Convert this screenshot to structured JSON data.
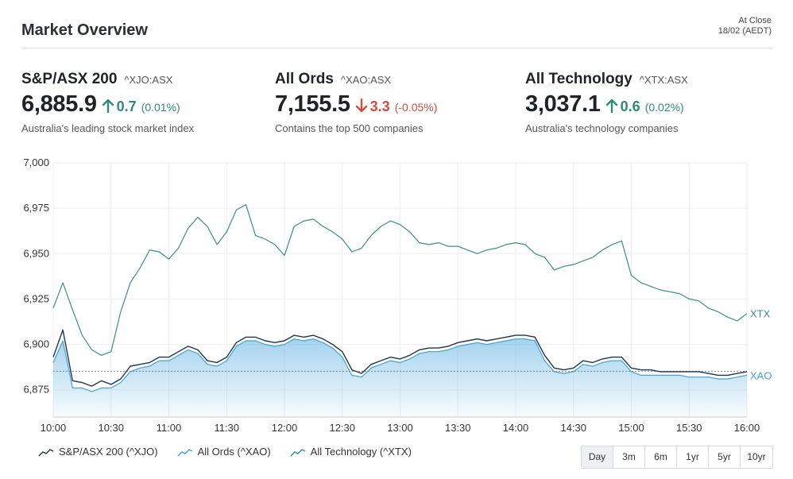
{
  "header": {
    "title": "Market Overview",
    "status": "At Close",
    "date": "18/02 (AEDT)"
  },
  "indices": [
    {
      "name": "S&P/ASX 200",
      "code": "^XJO:ASX",
      "value": "6,885.9",
      "direction": "up",
      "change": "0.7",
      "percent": "(0.01%)",
      "description": "Australia's leading stock market index"
    },
    {
      "name": "All Ords",
      "code": "^XAO:ASX",
      "value": "7,155.5",
      "direction": "down",
      "change": "3.3",
      "percent": "(-0.05%)",
      "description": "Contains the top 500 companies"
    },
    {
      "name": "All Technology",
      "code": "^XTX:ASX",
      "value": "3,037.1",
      "direction": "up",
      "change": "0.6",
      "percent": "(0.02%)",
      "description": "Australia's technology companies"
    }
  ],
  "colors": {
    "up": "#2e8b78",
    "down": "#d24b3c",
    "xjo": "#1c3552",
    "xao": "#4a9fcb",
    "xtx": "#3d8f7e"
  },
  "legend": [
    {
      "label": "S&P/ASX 200 (^XJO)",
      "color": "#1c3552"
    },
    {
      "label": "All Ords (^XAO)",
      "color": "#4a9fcb"
    },
    {
      "label": "All Technology (^XTX)",
      "color": "#3d8f7e"
    }
  ],
  "ranges": {
    "items": [
      "Day",
      "3m",
      "6m",
      "1yr",
      "5yr",
      "10yr"
    ],
    "active": "Day"
  },
  "chart_data": {
    "type": "line",
    "x": [
      "10:00",
      "10:05",
      "10:10",
      "10:15",
      "10:20",
      "10:25",
      "10:30",
      "10:35",
      "10:40",
      "10:45",
      "10:50",
      "10:55",
      "11:00",
      "11:05",
      "11:10",
      "11:15",
      "11:20",
      "11:25",
      "11:30",
      "11:35",
      "11:40",
      "11:45",
      "11:50",
      "11:55",
      "12:00",
      "12:05",
      "12:10",
      "12:15",
      "12:20",
      "12:25",
      "12:30",
      "12:35",
      "12:40",
      "12:45",
      "12:50",
      "12:55",
      "13:00",
      "13:05",
      "13:10",
      "13:15",
      "13:20",
      "13:25",
      "13:30",
      "13:35",
      "13:40",
      "13:45",
      "13:50",
      "13:55",
      "14:00",
      "14:05",
      "14:10",
      "14:15",
      "14:20",
      "14:25",
      "14:30",
      "14:35",
      "14:40",
      "14:45",
      "14:50",
      "14:55",
      "15:00",
      "15:05",
      "15:10",
      "15:15",
      "15:20",
      "15:25",
      "15:30",
      "15:35",
      "15:40",
      "15:45",
      "15:50",
      "15:55",
      "16:00"
    ],
    "x_ticks": [
      "10:00",
      "10:30",
      "11:00",
      "11:30",
      "12:00",
      "12:30",
      "13:00",
      "13:30",
      "14:00",
      "14:30",
      "15:00",
      "15:30",
      "16:00"
    ],
    "y_ticks": [
      6875,
      6900,
      6925,
      6950,
      6975,
      7000
    ],
    "ylim": [
      6860,
      7000
    ],
    "reference_line": 6885.2,
    "series": [
      {
        "name": "S&P/ASX 200 (^XJO)",
        "end_label": "",
        "color": "#1c3552",
        "values": [
          6893,
          6908,
          6880,
          6879,
          6877,
          6880,
          6878,
          6881,
          6888,
          6889,
          6890,
          6893,
          6893,
          6896,
          6899,
          6897,
          6891,
          6890,
          6893,
          6901,
          6904,
          6904,
          6902,
          6901,
          6902,
          6905,
          6904,
          6905,
          6903,
          6900,
          6896,
          6886,
          6884,
          6889,
          6891,
          6893,
          6892,
          6894,
          6897,
          6898,
          6898,
          6899,
          6901,
          6902,
          6903,
          6902,
          6903,
          6904,
          6905,
          6905,
          6904,
          6894,
          6887,
          6886,
          6887,
          6891,
          6890,
          6892,
          6893,
          6893,
          6887,
          6886,
          6886,
          6885,
          6885,
          6885,
          6885,
          6885,
          6884,
          6883,
          6883,
          6884,
          6885
        ]
      },
      {
        "name": "All Ords (^XAO)",
        "end_label": "XAO",
        "color": "#4a9fcb",
        "values": [
          6890,
          6902,
          6876,
          6876,
          6874,
          6876,
          6876,
          6879,
          6885,
          6887,
          6888,
          6891,
          6891,
          6894,
          6897,
          6895,
          6889,
          6888,
          6891,
          6899,
          6902,
          6902,
          6900,
          6899,
          6900,
          6903,
          6902,
          6903,
          6901,
          6898,
          6893,
          6883,
          6882,
          6887,
          6889,
          6891,
          6890,
          6892,
          6895,
          6896,
          6896,
          6897,
          6899,
          6900,
          6901,
          6900,
          6901,
          6902,
          6903,
          6903,
          6902,
          6891,
          6885,
          6884,
          6885,
          6889,
          6888,
          6890,
          6891,
          6891,
          6885,
          6883,
          6883,
          6883,
          6883,
          6883,
          6882,
          6882,
          6882,
          6881,
          6881,
          6882,
          6883
        ]
      },
      {
        "name": "All Technology (^XTX)",
        "end_label": "XTX",
        "color": "#3d8f7e",
        "values": [
          6920,
          6934,
          6919,
          6905,
          6897,
          6894,
          6896,
          6918,
          6934,
          6942,
          6952,
          6951,
          6947,
          6953,
          6964,
          6970,
          6965,
          6955,
          6962,
          6974,
          6977,
          6960,
          6958,
          6955,
          6949,
          6965,
          6968,
          6969,
          6965,
          6962,
          6958,
          6951,
          6953,
          6960,
          6965,
          6968,
          6966,
          6962,
          6956,
          6955,
          6956,
          6954,
          6954,
          6952,
          6950,
          6952,
          6953,
          6955,
          6956,
          6955,
          6950,
          6948,
          6941,
          6943,
          6944,
          6946,
          6948,
          6952,
          6955,
          6957,
          6938,
          6934,
          6932,
          6930,
          6929,
          6928,
          6925,
          6924,
          6920,
          6918,
          6915,
          6913,
          6917
        ]
      }
    ]
  }
}
